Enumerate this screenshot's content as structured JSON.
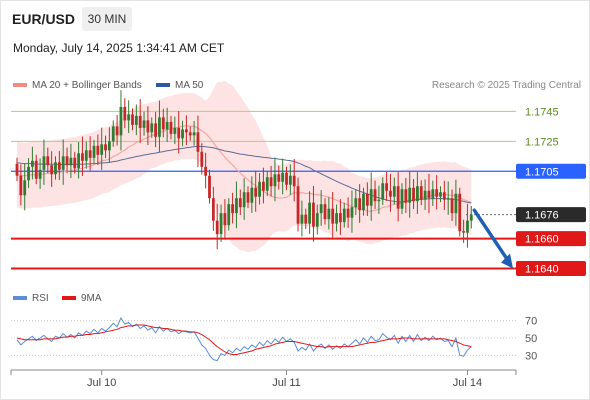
{
  "header": {
    "symbol": "EUR/USD",
    "timeframe": "30 MIN",
    "datetime": "Monday, July 14, 2025 1:34:41 AM CET"
  },
  "legend_top": [
    {
      "label": "MA 20 + Bollinger Bands",
      "color": "#f28b82"
    },
    {
      "label": "MA 50",
      "color": "#2c5aa0"
    }
  ],
  "attribution": "Research © 2025 Trading Central",
  "legend_bottom": [
    {
      "label": "RSI",
      "color": "#5b8dd9"
    },
    {
      "label": "9MA",
      "color": "#e01818"
    }
  ],
  "colors": {
    "bull": "#2e7d32",
    "bear": "#c62828",
    "ma20": "#f4a6a6",
    "band": "#fcdada",
    "ma50": "#5a6d9a",
    "resistance": "#a6d46e",
    "pivot": "#2962ff",
    "support": "#e01818",
    "arrow": "#1e5fb4",
    "rsi": "#5b8dd9",
    "rsi_ma": "#e01818"
  },
  "chart_data": [
    {
      "type": "candlestick",
      "title": "EUR/USD 30 MIN",
      "ylim": [
        1.1627,
        1.1768
      ],
      "x_ticks": [
        {
          "index": 22,
          "label": "Jul 10"
        },
        {
          "index": 70,
          "label": "Jul 11"
        },
        {
          "index": 117,
          "label": "Jul 14"
        }
      ],
      "last_price": 1.1676,
      "levels": [
        {
          "value": 1.1745,
          "label": "1.1745",
          "kind": "resistance"
        },
        {
          "value": 1.1725,
          "label": "1.1725",
          "kind": "resistance"
        },
        {
          "value": 1.1705,
          "label": "1.1705",
          "kind": "pivot"
        },
        {
          "value": 1.1676,
          "label": "1.1676",
          "kind": "last"
        },
        {
          "value": 1.166,
          "label": "1.1660",
          "kind": "support"
        },
        {
          "value": 1.164,
          "label": "1.1640",
          "kind": "support"
        }
      ],
      "forecast_arrow": {
        "from": 1.1679,
        "to": 1.164
      },
      "closes": [
        1.1702,
        1.1689,
        1.1699,
        1.1708,
        1.1712,
        1.17,
        1.1706,
        1.1715,
        1.1709,
        1.1703,
        1.1711,
        1.1706,
        1.1715,
        1.1709,
        1.1714,
        1.1707,
        1.1717,
        1.1712,
        1.1719,
        1.1714,
        1.1722,
        1.1716,
        1.1723,
        1.1719,
        1.1725,
        1.1735,
        1.1729,
        1.1748,
        1.1739,
        1.1743,
        1.1736,
        1.1742,
        1.1734,
        1.1739,
        1.1731,
        1.1737,
        1.1728,
        1.1741,
        1.1733,
        1.1738,
        1.173,
        1.1734,
        1.1727,
        1.1733,
        1.1731,
        1.1729,
        1.1731,
        1.1718,
        1.1708,
        1.1702,
        1.1687,
        1.1672,
        1.1663,
        1.1677,
        1.1669,
        1.1683,
        1.1677,
        1.1687,
        1.1681,
        1.1691,
        1.1684,
        1.1694,
        1.1688,
        1.1698,
        1.1692,
        1.1701,
        1.1695,
        1.1703,
        1.1698,
        1.1704,
        1.1696,
        1.1702,
        1.1695,
        1.167,
        1.1676,
        1.167,
        1.1684,
        1.1668,
        1.1677,
        1.1683,
        1.1673,
        1.168,
        1.167,
        1.1677,
        1.1671,
        1.168,
        1.1674,
        1.1681,
        1.1687,
        1.1679,
        1.169,
        1.1682,
        1.1693,
        1.1685,
        1.1686,
        1.1697,
        1.1692,
        1.1688,
        1.1695,
        1.168,
        1.1693,
        1.1684,
        1.1694,
        1.1685,
        1.1695,
        1.1686,
        1.1692,
        1.1687,
        1.1693,
        1.1688,
        1.1691,
        1.1686,
        1.1687,
        1.1677,
        1.169,
        1.1665,
        1.1664,
        1.1672,
        1.1676
      ],
      "ma20_start": 1.1703,
      "ma20_end": 1.1686,
      "ma50_start": 1.1711,
      "ma50_end": 1.1688
    },
    {
      "type": "line",
      "title": "RSI",
      "ylim": [
        20,
        80
      ],
      "y_ticks": [
        70,
        50,
        30
      ],
      "series": [
        {
          "name": "RSI",
          "values": [
            48,
            42,
            46,
            49,
            52,
            47,
            50,
            53,
            49,
            46,
            52,
            50,
            55,
            51,
            54,
            50,
            56,
            53,
            58,
            55,
            60,
            56,
            61,
            58,
            62,
            67,
            63,
            73,
            66,
            68,
            63,
            66,
            61,
            64,
            59,
            62,
            56,
            63,
            58,
            61,
            57,
            59,
            55,
            58,
            57,
            56,
            57,
            50,
            42,
            38,
            30,
            25,
            24,
            32,
            30,
            36,
            33,
            38,
            35,
            40,
            37,
            42,
            39,
            45,
            41,
            47,
            43,
            49,
            45,
            51,
            46,
            49,
            45,
            35,
            39,
            36,
            43,
            35,
            40,
            43,
            38,
            42,
            37,
            41,
            38,
            43,
            40,
            44,
            48,
            43,
            50,
            45,
            52,
            47,
            48,
            55,
            51,
            48,
            53,
            44,
            52,
            46,
            53,
            46,
            54,
            47,
            51,
            47,
            52,
            48,
            50,
            46,
            47,
            40,
            50,
            30,
            29,
            36,
            40
          ]
        },
        {
          "name": "9MA",
          "values": [
            50,
            49,
            48,
            48,
            48,
            48,
            48,
            49,
            49,
            49,
            49,
            50,
            51,
            51,
            52,
            52,
            53,
            53,
            54,
            54,
            55,
            55,
            56,
            57,
            58,
            59,
            60,
            62,
            63,
            64,
            64,
            65,
            65,
            65,
            64,
            63,
            62,
            62,
            61,
            61,
            60,
            59,
            59,
            58,
            58,
            57,
            57,
            56,
            54,
            51,
            48,
            44,
            40,
            37,
            34,
            32,
            31,
            31,
            32,
            33,
            34,
            35,
            37,
            38,
            39,
            40,
            41,
            43,
            44,
            45,
            46,
            46,
            46,
            45,
            44,
            43,
            42,
            41,
            40,
            40,
            39,
            40,
            40,
            40,
            40,
            40,
            40,
            40,
            41,
            42,
            43,
            44,
            45,
            45,
            46,
            47,
            48,
            49,
            49,
            49,
            50,
            50,
            50,
            49,
            49,
            49,
            49,
            49,
            49,
            49,
            49,
            49,
            48,
            47,
            46,
            44,
            42,
            41,
            40
          ]
        }
      ]
    }
  ]
}
